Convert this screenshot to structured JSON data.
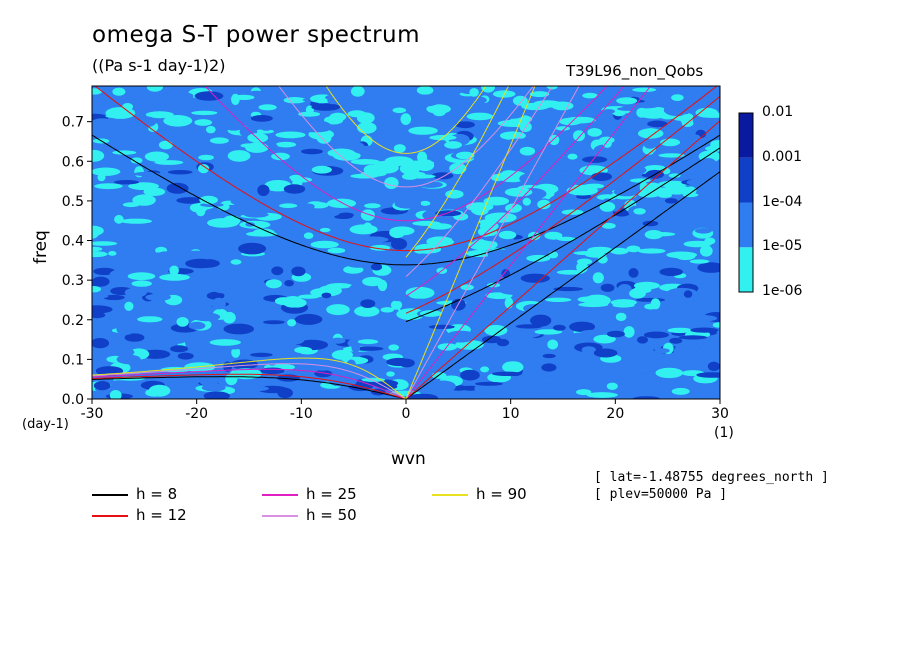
{
  "title": "omega S-T power spectrum",
  "units": "((Pa s-1 day-1)2)",
  "run_id": "T39L96_non_Qobs",
  "meta": {
    "lat": "[ lat=-1.48755 degrees_north ]",
    "plev": "[ plev=50000 Pa ]"
  },
  "chart_data": {
    "type": "heatmap",
    "xlabel": "wvn",
    "x_unit": "(1)",
    "ylabel": "freq",
    "y_unit": "(day-1)",
    "xlim": [
      -30,
      30
    ],
    "ylim": [
      0,
      0.79
    ],
    "x_ticks": [
      -30,
      -20,
      -10,
      0,
      10,
      20,
      30
    ],
    "x_tick_labels": [
      "-30",
      "-20",
      "-10",
      "0",
      "10",
      "20",
      "30"
    ],
    "y_ticks": [
      0.0,
      0.1,
      0.2,
      0.3,
      0.4,
      0.5,
      0.6,
      0.7
    ],
    "y_tick_labels": [
      "0.0",
      "0.1",
      "0.2",
      "0.3",
      "0.4",
      "0.5",
      "0.6",
      "0.7"
    ],
    "colorbar": {
      "levels": [
        "1e-06",
        "1e-05",
        "1e-04",
        "0.001",
        "0.01"
      ],
      "colors": [
        "#33f0f0",
        "#2f7df0",
        "#1040c8",
        "#0a1aa0",
        "#4a20b0"
      ]
    },
    "dispersion_curves": [
      {
        "name": "h =  8",
        "h": 8,
        "color": "#000000"
      },
      {
        "name": "h = 12",
        "h": 12,
        "color": "#e81010"
      },
      {
        "name": "h = 25",
        "h": 25,
        "color": "#e020c0"
      },
      {
        "name": "h = 50",
        "h": 50,
        "color": "#d890e0"
      },
      {
        "name": "h = 90",
        "h": 90,
        "color": "#e8e020"
      }
    ]
  }
}
